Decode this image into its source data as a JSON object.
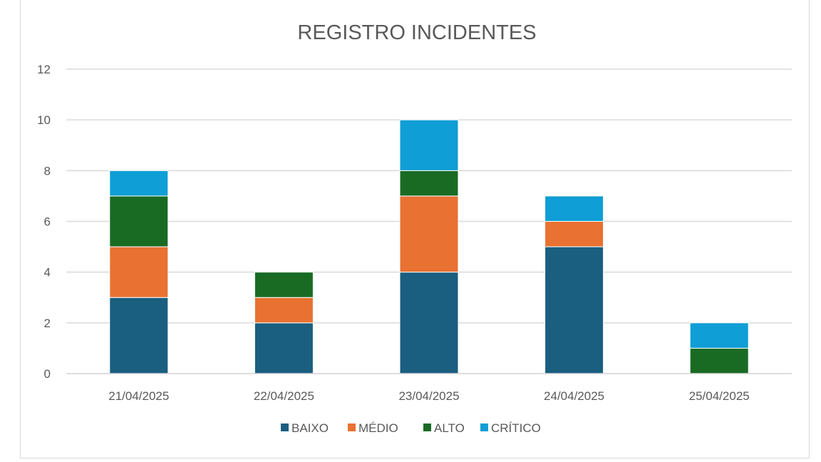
{
  "chart_data": {
    "type": "bar",
    "stacked": true,
    "title": "REGISTRO INCIDENTES",
    "xlabel": "",
    "ylabel": "",
    "categories": [
      "21/04/2025",
      "22/04/2025",
      "23/04/2025",
      "24/04/2025",
      "25/04/2025"
    ],
    "series": [
      {
        "name": "BAIXO",
        "color": "#1a5e80",
        "values": [
          3,
          2,
          4,
          5,
          0
        ]
      },
      {
        "name": "MÉDIO",
        "color": "#e97132",
        "values": [
          2,
          1,
          3,
          1,
          0
        ]
      },
      {
        "name": "ALTO",
        "color": "#196b24",
        "values": [
          2,
          1,
          1,
          0,
          1
        ]
      },
      {
        "name": "CRÍTICO",
        "color": "#0f9ed5",
        "values": [
          1,
          0,
          2,
          1,
          1
        ]
      }
    ],
    "ylim": [
      0,
      12
    ],
    "yticks": [
      0,
      2,
      4,
      6,
      8,
      10,
      12
    ],
    "grid": true,
    "legend": "bottom"
  }
}
